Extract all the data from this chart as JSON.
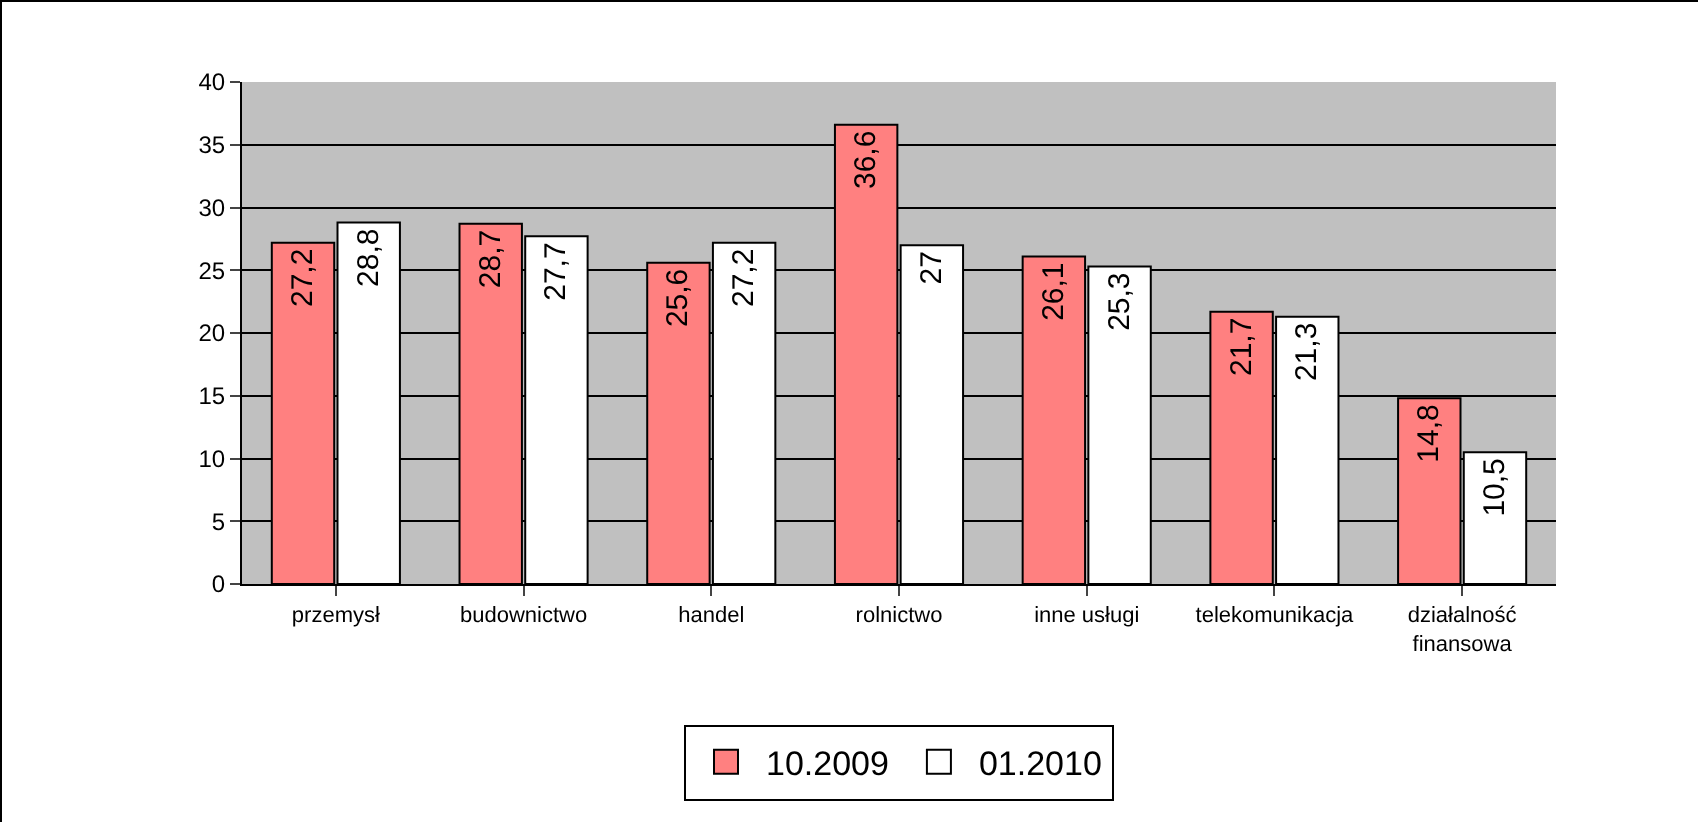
{
  "chart_data": {
    "type": "bar",
    "categories": [
      "przemysł",
      "budownictwo",
      "handel",
      "rolnictwo",
      "inne usługi",
      "telekomunikacja",
      "działalność finansowa"
    ],
    "series": [
      {
        "name": "10.2009",
        "color": "#ff8080",
        "values": [
          27.2,
          28.7,
          25.6,
          36.6,
          26.1,
          21.7,
          14.8
        ],
        "value_labels": [
          "27,2",
          "28,7",
          "25,6",
          "36,6",
          "26,1",
          "21,7",
          "14,8"
        ]
      },
      {
        "name": "01.2010",
        "color": "#ffffff",
        "values": [
          28.8,
          27.7,
          27.2,
          27,
          25.3,
          21.3,
          10.5
        ],
        "value_labels": [
          "28,8",
          "27,7",
          "27,2",
          "27",
          "25,3",
          "21,3",
          "10,5"
        ]
      }
    ],
    "ylim": [
      0,
      40
    ],
    "yticks": [
      0,
      5,
      10,
      15,
      20,
      25,
      30,
      35,
      40
    ],
    "grid": "y",
    "legend": "bottom"
  }
}
